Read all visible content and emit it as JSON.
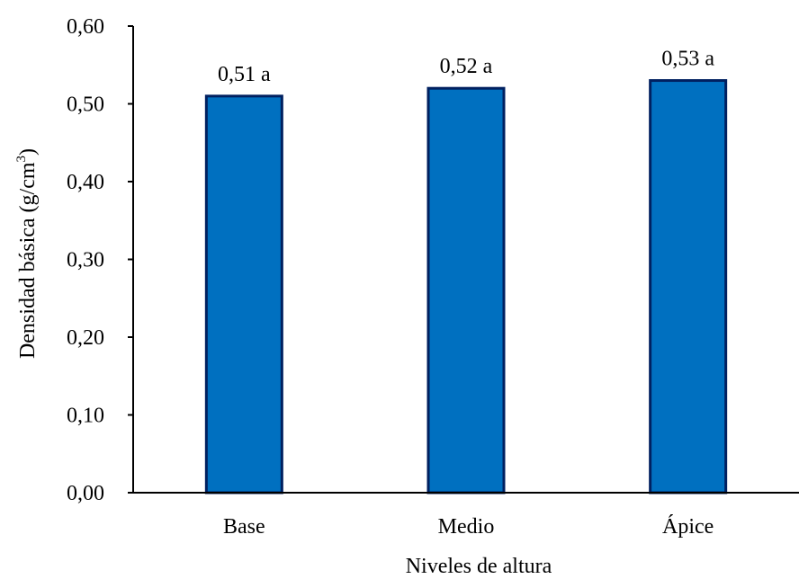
{
  "chart_data": {
    "type": "bar",
    "categories": [
      "Base",
      "Medio",
      "Ápice"
    ],
    "values": [
      0.51,
      0.52,
      0.53
    ],
    "data_labels": [
      "0,51 a",
      "0,52 a",
      "0,53 a"
    ],
    "xlabel": "Niveles  de altura",
    "ylabel": "Densidad básica (g/cm",
    "ylabel_superscript": "3",
    "ylabel_suffix": ")",
    "ylim": [
      0,
      0.6
    ],
    "yticks": [
      0,
      0.1,
      0.2,
      0.3,
      0.4,
      0.5,
      0.6
    ],
    "ytick_labels": [
      "0,00",
      "0,10",
      "0,20",
      "0,30",
      "0,40",
      "0,50",
      "0,60"
    ],
    "grid": false,
    "legend": "none",
    "bar_color": "#0070C0",
    "bar_edge_color": "#002060",
    "axis_color": "#000000"
  }
}
